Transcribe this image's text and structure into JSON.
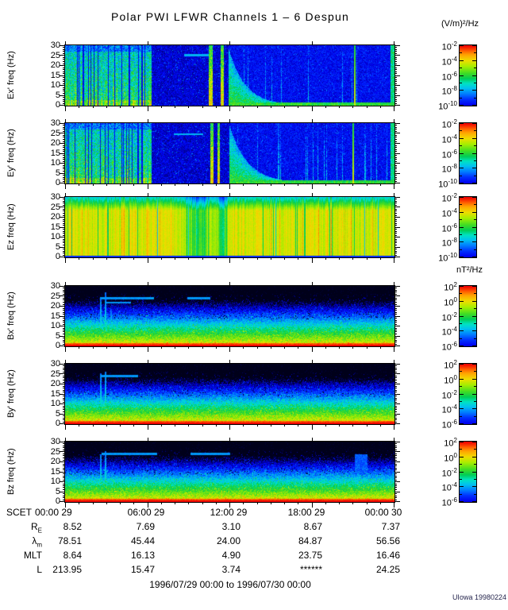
{
  "chart_data": {
    "type": "heatmap",
    "title": "Polar PWI LFWR Channels 1 – 6 Despun",
    "credit": "UIowa 19980224",
    "time_axis": {
      "scet_label": "SCET",
      "tick_labels": [
        "00:00 29",
        "06:00 29",
        "12:00 29",
        "18:00 29",
        "00:00 30"
      ],
      "range_label": "1996/07/29 00:00 to 1996/07/30 00:00",
      "hours": 24,
      "major_every_hours": 6
    },
    "freq_axis": {
      "min": 0,
      "max": 30,
      "major_ticks": [
        0,
        5,
        10,
        15,
        20,
        25,
        30
      ],
      "minor_step": 1
    },
    "colorbar_units": {
      "e": "(V/m)²/Hz",
      "b": "nT²/Hz"
    },
    "colorbars": {
      "e": {
        "labels": [
          {
            "base": "10",
            "exp": "-2"
          },
          {
            "base": "10",
            "exp": "-4"
          },
          {
            "base": "10",
            "exp": "-6"
          },
          {
            "base": "10",
            "exp": "-8"
          },
          {
            "base": "10",
            "exp": "-10"
          }
        ]
      },
      "b": {
        "labels": [
          {
            "base": "10",
            "exp": "2"
          },
          {
            "base": "10",
            "exp": "0"
          },
          {
            "base": "10",
            "exp": "-2"
          },
          {
            "base": "10",
            "exp": "-4"
          },
          {
            "base": "10",
            "exp": "-6"
          }
        ]
      }
    },
    "colormap": [
      [
        0,
        "#00001a"
      ],
      [
        0.05,
        "#000090"
      ],
      [
        0.13,
        "#0000ee"
      ],
      [
        0.22,
        "#0033ff"
      ],
      [
        0.3,
        "#0080ff"
      ],
      [
        0.38,
        "#00c4ee"
      ],
      [
        0.45,
        "#00e4c0"
      ],
      [
        0.52,
        "#00cc55"
      ],
      [
        0.6,
        "#44dd22"
      ],
      [
        0.7,
        "#aaee00"
      ],
      [
        0.78,
        "#eedd00"
      ],
      [
        0.86,
        "#ffaa00"
      ],
      [
        0.93,
        "#ff5500"
      ],
      [
        1,
        "#ee0000"
      ]
    ],
    "panels": [
      {
        "id": "ex",
        "ylabel": "Ex' freq (Hz)",
        "group": "e",
        "pattern": {
          "kind": "e",
          "seed": 11,
          "greenEnd": 0.262,
          "lines": [
            [
              0.437,
              0.449
            ],
            [
              0.472,
              0.481
            ]
          ],
          "wedgeStart": 0.497,
          "wedgeDecay": 0.05,
          "hline": {
            "v": 0.84,
            "u0": 0.36,
            "u1": 0.435
          },
          "brightLine": 0.88
        }
      },
      {
        "id": "ey",
        "ylabel": "Ey' freq (Hz)",
        "group": "e",
        "pattern": {
          "kind": "e",
          "seed": 23,
          "greenEnd": 0.262,
          "lines": [
            [
              0.44,
              0.45
            ],
            [
              0.462,
              0.47
            ]
          ],
          "wedgeStart": 0.5,
          "wedgeDecay": 0.055,
          "hline": {
            "v": 0.82,
            "u0": 0.33,
            "u1": 0.42
          },
          "brightLine": 0.875
        }
      },
      {
        "id": "ez",
        "ylabel": "Ez freq (Hz)",
        "group": "e",
        "pattern": {
          "kind": "ez",
          "seed": 37,
          "topBand": 0.78,
          "dips": [
            {
              "c": 0.405,
              "w": 0.033,
              "d": 0.26
            },
            {
              "c": 0.477,
              "w": 0.013,
              "d": 0.24
            }
          ]
        }
      },
      {
        "id": "bx",
        "ylabel": "Bx' freq (Hz)",
        "group": "b",
        "pattern": {
          "kind": "b",
          "seed": 51,
          "spikes": [
            {
              "u": 0.107,
              "h": 0.82
            },
            {
              "u": 0.122,
              "h": 0.9
            },
            {
              "u": 0.138,
              "h": 0.62
            },
            {
              "u": 0.148,
              "h": 0.35
            }
          ],
          "hlines": [
            {
              "v": 0.8,
              "u0": 0.105,
              "u1": 0.27
            },
            {
              "v": 0.8,
              "u0": 0.37,
              "u1": 0.44
            },
            {
              "v": 0.73,
              "u0": 0.12,
              "u1": 0.2
            }
          ]
        }
      },
      {
        "id": "by",
        "ylabel": "By' freq (Hz)",
        "group": "b",
        "pattern": {
          "kind": "b",
          "seed": 63,
          "spikes": [
            {
              "u": 0.107,
              "h": 0.85
            },
            {
              "u": 0.122,
              "h": 0.88
            },
            {
              "u": 0.138,
              "h": 0.55
            }
          ],
          "hlines": [
            {
              "v": 0.8,
              "u0": 0.105,
              "u1": 0.22
            }
          ]
        }
      },
      {
        "id": "bz",
        "ylabel": "Bz freq (Hz)",
        "group": "b",
        "pattern": {
          "kind": "b",
          "seed": 77,
          "spikes": [
            {
              "u": 0.107,
              "h": 0.8
            },
            {
              "u": 0.122,
              "h": 0.85
            },
            {
              "u": 0.135,
              "h": 0.4
            }
          ],
          "hlines": [
            {
              "v": 0.8,
              "u0": 0.11,
              "u1": 0.28
            },
            {
              "v": 0.8,
              "u0": 0.38,
              "u1": 0.5
            }
          ],
          "smudge": {
            "u0": 0.88,
            "u1": 0.92,
            "v0": 0.45,
            "v1": 0.8
          }
        }
      }
    ],
    "ephemeris": [
      {
        "label": {
          "main": "R",
          "sub": "E"
        },
        "values": [
          "8.52",
          "7.69",
          "3.10",
          "8.67",
          "7.37"
        ]
      },
      {
        "label": {
          "main": "λ",
          "sub": "m"
        },
        "values": [
          "78.51",
          "45.44",
          "24.00",
          "84.87",
          "56.56"
        ]
      },
      {
        "label": {
          "main": "MLT"
        },
        "values": [
          "8.64",
          "16.13",
          "4.90",
          "23.75",
          "16.46"
        ]
      },
      {
        "label": {
          "main": "L"
        },
        "values": [
          "213.95",
          "15.47",
          "3.74",
          "******",
          "24.25"
        ]
      }
    ]
  }
}
